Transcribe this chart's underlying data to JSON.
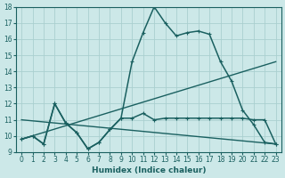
{
  "xlabel": "Humidex (Indice chaleur)",
  "bg_color": "#cce8e8",
  "grid_color": "#aacfcf",
  "line_color": "#1a6060",
  "xlim": [
    -0.5,
    23.5
  ],
  "ylim": [
    9,
    18
  ],
  "xticks": [
    0,
    1,
    2,
    3,
    4,
    5,
    6,
    7,
    8,
    9,
    10,
    11,
    12,
    13,
    14,
    15,
    16,
    17,
    18,
    19,
    20,
    21,
    22,
    23
  ],
  "yticks": [
    9,
    10,
    11,
    12,
    13,
    14,
    15,
    16,
    17,
    18
  ],
  "series": [
    {
      "x": [
        0,
        1,
        2,
        3,
        4,
        5,
        6,
        7,
        8,
        9,
        10,
        11,
        12,
        13,
        14,
        15,
        16,
        17,
        18,
        19,
        20,
        21,
        22,
        23
      ],
      "y": [
        9.8,
        10.0,
        9.5,
        12.0,
        10.8,
        10.2,
        9.2,
        9.6,
        10.4,
        11.1,
        14.6,
        16.4,
        18.0,
        17.0,
        16.2,
        16.4,
        16.5,
        16.3,
        14.6,
        13.4,
        11.6,
        10.7,
        9.6,
        9.5
      ],
      "marker": true,
      "lw": 1.1
    },
    {
      "x": [
        0,
        1,
        2,
        3,
        4,
        5,
        6,
        7,
        8,
        9,
        10,
        11,
        12,
        13,
        14,
        15,
        16,
        17,
        18,
        19,
        20,
        21,
        22,
        23
      ],
      "y": [
        9.8,
        10.0,
        9.5,
        12.0,
        10.8,
        10.2,
        9.2,
        9.6,
        10.4,
        11.1,
        11.1,
        11.4,
        11.0,
        11.1,
        11.1,
        11.1,
        11.1,
        11.1,
        11.1,
        11.1,
        11.1,
        11.0,
        11.0,
        9.5
      ],
      "marker": true,
      "lw": 1.1
    },
    {
      "x": [
        0,
        23
      ],
      "y": [
        9.8,
        14.6
      ],
      "marker": false,
      "lw": 1.0
    },
    {
      "x": [
        0,
        23
      ],
      "y": [
        11.0,
        9.5
      ],
      "marker": false,
      "lw": 1.0
    }
  ]
}
